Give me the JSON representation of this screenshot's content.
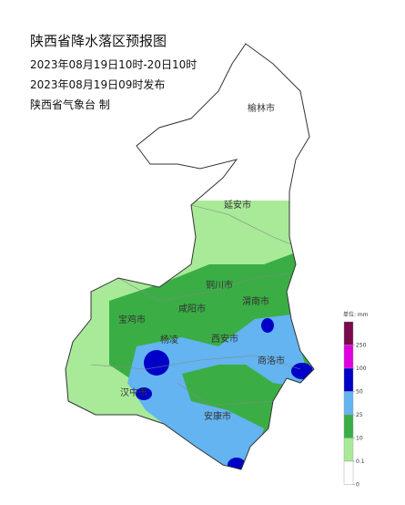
{
  "header": {
    "title": "陕西省降水落区预报图",
    "period": "2023年08月19日10时-20日10时",
    "issued": "2023年08月19日09时发布",
    "issuer": "陕西省气象台 制"
  },
  "cities": [
    {
      "label": "榆林市"
    },
    {
      "label": "延安市"
    },
    {
      "label": "铜川市"
    },
    {
      "label": "咸阳市"
    },
    {
      "label": "渭南市"
    },
    {
      "label": "宝鸡市"
    },
    {
      "label": "杨凌"
    },
    {
      "label": "西安市"
    },
    {
      "label": "商洛市"
    },
    {
      "label": "汉中市"
    },
    {
      "label": "安康市"
    }
  ],
  "legend": {
    "unit": "单位: mm",
    "ticks": [
      250,
      100,
      50,
      25,
      10,
      0.1,
      0
    ],
    "colors": [
      "#7b0a4a",
      "#e000e0",
      "#0000c8",
      "#63b4f0",
      "#3aae45",
      "#a8ea98",
      "#ffffff"
    ]
  }
}
